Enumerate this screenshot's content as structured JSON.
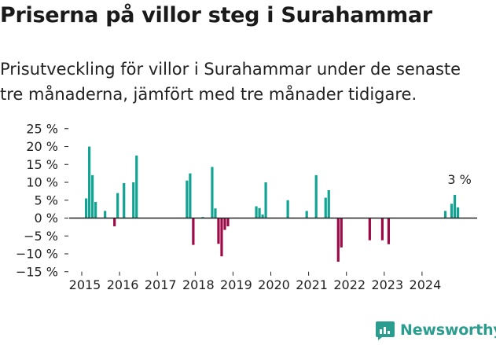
{
  "title": "Priserna på villor steg i Surahammar",
  "subtitle": "Prisutveckling för villor i Surahammar under de senaste tre månaderna, jämfört med tre månader tidigare.",
  "brand": {
    "name": "Newsworthy",
    "icon": "newsworthy-logo-icon"
  },
  "colors": {
    "positive": "#13a392",
    "negative": "#9b0b47",
    "axis": "#222222",
    "text": "#222222"
  },
  "chart_data": {
    "type": "bar",
    "title": "Priserna på villor steg i Surahammar",
    "subtitle": "Prisutveckling för villor i Surahammar under de senaste tre månaderna, jämfört med tre månader tidigare.",
    "xlabel": "",
    "ylabel": "",
    "ylim": [
      -15,
      25
    ],
    "yticks": [
      25,
      20,
      15,
      10,
      5,
      0,
      -5,
      -10,
      -15
    ],
    "ytick_labels": [
      "25 %",
      "20 %",
      "15 %",
      "10 %",
      "5 %",
      "0 %",
      "−5 %",
      "−10 %",
      "−15 %"
    ],
    "xticks": [
      "2015",
      "2016",
      "2017",
      "2018",
      "2019",
      "2020",
      "2021",
      "2022",
      "2023",
      "2024"
    ],
    "grid": false,
    "annotation": {
      "text": "3 %",
      "date": "2024-12"
    },
    "series": [
      {
        "points": [
          {
            "date": "2015-02",
            "value": 5.5
          },
          {
            "date": "2015-03",
            "value": 20
          },
          {
            "date": "2015-04",
            "value": 12
          },
          {
            "date": "2015-05",
            "value": 4.5
          },
          {
            "date": "2015-08",
            "value": 2
          },
          {
            "date": "2015-11",
            "value": -2.3
          },
          {
            "date": "2015-12",
            "value": 7
          },
          {
            "date": "2016-02",
            "value": 9.8
          },
          {
            "date": "2016-05",
            "value": 10
          },
          {
            "date": "2016-06",
            "value": 17.5
          },
          {
            "date": "2017-10",
            "value": 10.5
          },
          {
            "date": "2017-11",
            "value": 12.5
          },
          {
            "date": "2017-12",
            "value": -7.5
          },
          {
            "date": "2018-03",
            "value": 0.3
          },
          {
            "date": "2018-06",
            "value": 14.3
          },
          {
            "date": "2018-07",
            "value": 2.7
          },
          {
            "date": "2018-08",
            "value": -7.2
          },
          {
            "date": "2018-09",
            "value": -10.7
          },
          {
            "date": "2018-10",
            "value": -3.3
          },
          {
            "date": "2018-11",
            "value": -2.3
          },
          {
            "date": "2019-08",
            "value": 3.3
          },
          {
            "date": "2019-09",
            "value": 2.8
          },
          {
            "date": "2019-10",
            "value": 1
          },
          {
            "date": "2019-11",
            "value": 10
          },
          {
            "date": "2020-06",
            "value": 5
          },
          {
            "date": "2020-12",
            "value": 2
          },
          {
            "date": "2021-03",
            "value": 12
          },
          {
            "date": "2021-06",
            "value": 5.7
          },
          {
            "date": "2021-07",
            "value": 7.8
          },
          {
            "date": "2021-10",
            "value": -12.2
          },
          {
            "date": "2021-11",
            "value": -8.2
          },
          {
            "date": "2022-08",
            "value": -6.2
          },
          {
            "date": "2022-12",
            "value": -6.2
          },
          {
            "date": "2023-02",
            "value": -7.3
          },
          {
            "date": "2024-08",
            "value": 2
          },
          {
            "date": "2024-10",
            "value": 4
          },
          {
            "date": "2024-11",
            "value": 6.5
          },
          {
            "date": "2024-12",
            "value": 3
          }
        ]
      }
    ]
  }
}
